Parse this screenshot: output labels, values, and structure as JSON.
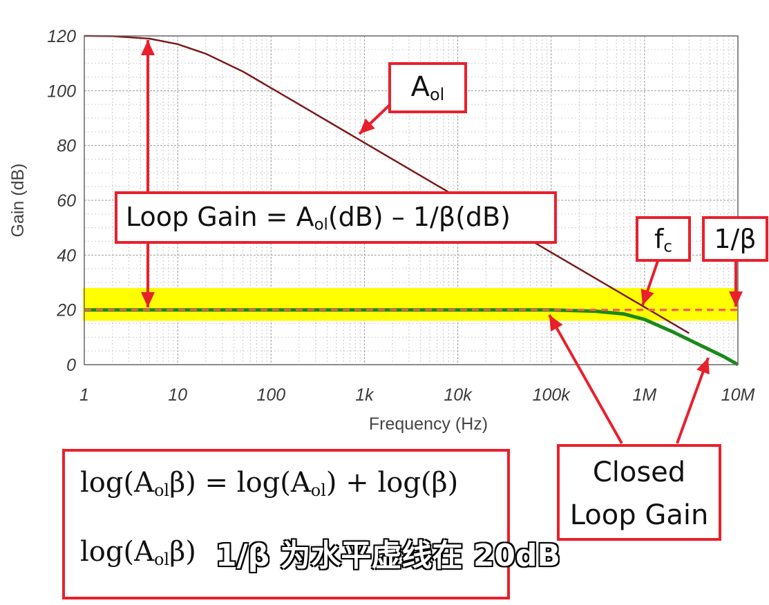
{
  "chart_data": {
    "type": "line",
    "xlabel": "Frequency (Hz)",
    "ylabel": "Gain (dB)",
    "xscale": "log",
    "xlim": [
      1,
      10000000
    ],
    "ylim": [
      0,
      120
    ],
    "xticks": [
      1,
      10,
      100,
      1000,
      10000,
      100000,
      1000000,
      10000000
    ],
    "xtick_labels": [
      "1",
      "10",
      "100",
      "1k",
      "10k",
      "100k",
      "1M",
      "10M"
    ],
    "yticks": [
      0,
      20,
      40,
      60,
      80,
      100,
      120
    ],
    "ytick_labels": [
      "0",
      "20",
      "40",
      "60",
      "80",
      "100",
      "120"
    ],
    "grid": true,
    "highlight_band": {
      "y_from": 16,
      "y_to": 28,
      "color": "#ffff00"
    },
    "series": [
      {
        "key": "aol",
        "color": "#7b1a1a",
        "style": "solid",
        "x": [
          1,
          2,
          5,
          10,
          20,
          50,
          100,
          200,
          1000,
          10000,
          100000,
          1000000,
          3000000
        ],
        "y": [
          120,
          119.9,
          119,
          117,
          113.5,
          107,
          101,
          95,
          81,
          61,
          41,
          21,
          11.5
        ]
      },
      {
        "key": "inv_beta",
        "color": "#ff5a5a",
        "style": "dashed",
        "x": [
          1,
          10000000
        ],
        "y": [
          20,
          20
        ]
      },
      {
        "key": "closed_loop",
        "color": "#1a8a1a",
        "style": "solid",
        "x": [
          1,
          100000,
          300000,
          600000,
          1000000,
          2000000,
          4000000,
          7000000,
          10000000
        ],
        "y": [
          20,
          20,
          19.5,
          18.5,
          16.5,
          12,
          7,
          3,
          0
        ]
      }
    ]
  },
  "labels": {
    "aol_main": "A",
    "aol_sub": "ol",
    "loop_a": "Loop Gain = A",
    "loop_sub": "ol",
    "loop_b": "(dB) – 1/β(dB)",
    "fc_main": "f",
    "fc_sub": "c",
    "inv_beta": "1/β",
    "closed_loop_1": "Closed",
    "closed_loop_2": "Loop Gain"
  },
  "equations": {
    "l1a": "log(A",
    "l1b": "ol",
    "l1c": "β) = log(A",
    "l1d": "ol",
    "l1e": ") + log(β)",
    "l2a": "log(A",
    "l2b": "ol",
    "l2c": "β)"
  },
  "caption": "1/β 为水平虚线在 20dB",
  "colors": {
    "annotation": "#e8202c",
    "band": "#ffff00"
  }
}
